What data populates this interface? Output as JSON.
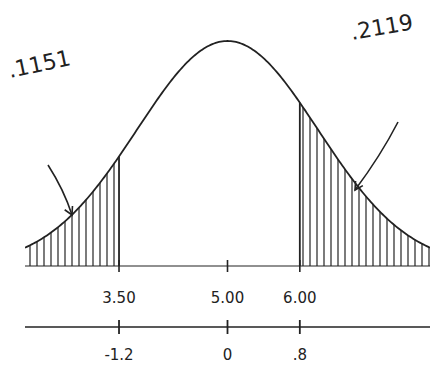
{
  "chart_data": {
    "type": "normal",
    "mean": 5,
    "sd": 1.25,
    "xlim": [
      2.2,
      7.8
    ],
    "xticks": [
      {
        "value": 3.5,
        "label": "3.50"
      },
      {
        "value": 5,
        "label": "5.00"
      },
      {
        "value": 6,
        "label": "6.00"
      }
    ],
    "z_ticks": [
      {
        "value": -1.2,
        "label": "-1.2"
      },
      {
        "value": 0,
        "label": "0"
      },
      {
        "value": 0.8,
        "label": ".8"
      }
    ],
    "bounds": [
      3.5,
      6
    ],
    "areas": {
      "values": [
        0.1151,
        0.2119
      ],
      "value_labels": [
        ".1151",
        ".2119"
      ]
    },
    "color": "#222222"
  }
}
